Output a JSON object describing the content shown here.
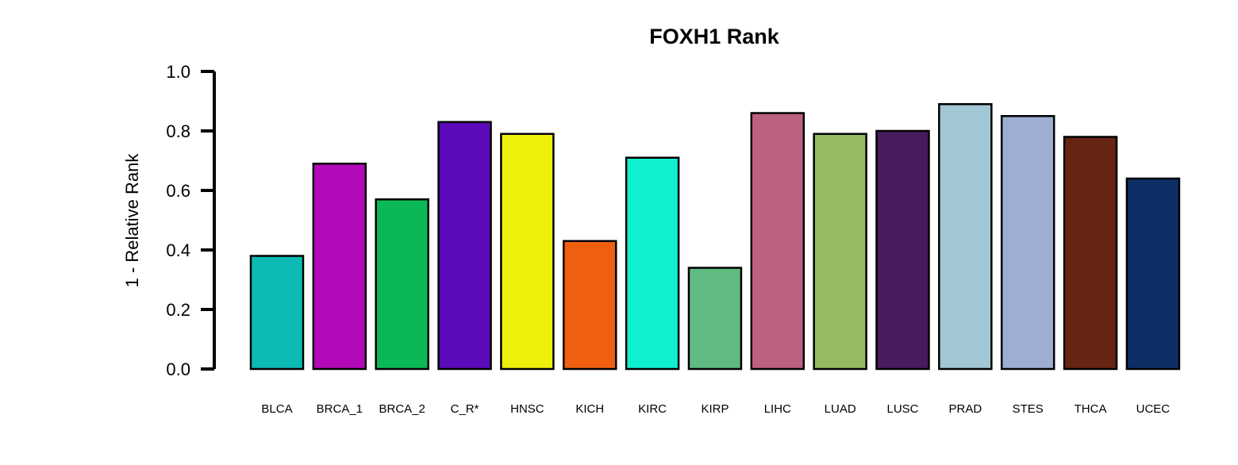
{
  "chart_data": {
    "type": "bar",
    "title": "FOXH1 Rank",
    "xlabel": "",
    "ylabel": "1 - Relative Rank",
    "ylim": [
      0,
      1
    ],
    "yticks": [
      "0.0",
      "0.2",
      "0.4",
      "0.6",
      "0.8",
      "1.0"
    ],
    "grid": false,
    "categories": [
      "BLCA",
      "BRCA_1",
      "BRCA_2",
      "C_R*",
      "HNSC",
      "KICH",
      "KIRC",
      "KIRP",
      "LIHC",
      "LUAD",
      "LUSC",
      "PRAD",
      "STES",
      "THCA",
      "UCEC"
    ],
    "values": [
      0.38,
      0.69,
      0.57,
      0.83,
      0.79,
      0.43,
      0.71,
      0.34,
      0.86,
      0.79,
      0.8,
      0.89,
      0.85,
      0.78,
      0.64
    ],
    "colors": [
      "#0bbab3",
      "#b30ab9",
      "#0ab955",
      "#5b0ab9",
      "#eef00c",
      "#f05f0f",
      "#0ff0d1",
      "#60ba81",
      "#bd6180",
      "#96ba60",
      "#481a5e",
      "#a1c6d4",
      "#9eaed2",
      "#662413",
      "#0e2f66"
    ]
  }
}
